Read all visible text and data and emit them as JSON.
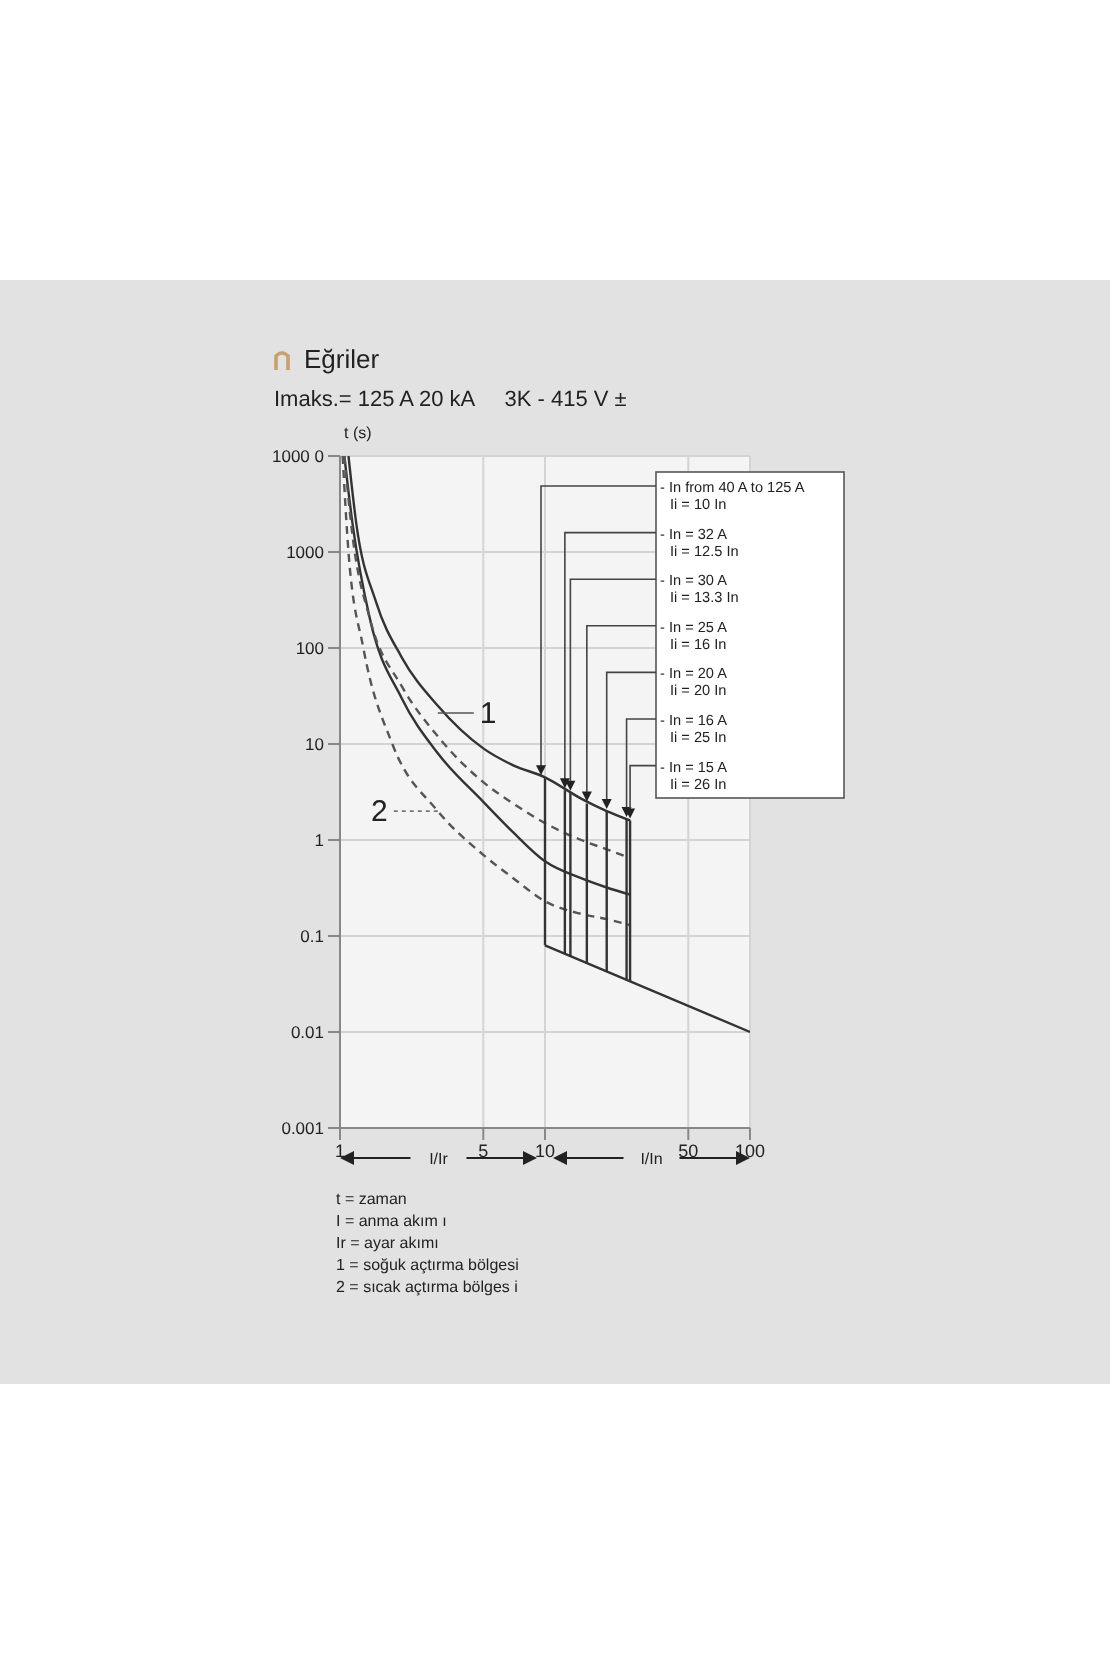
{
  "chart_data": {
    "type": "line",
    "title": "Eğriler",
    "subtitle": "Imaks.= 125 A 20 kA     3K - 415 V ±",
    "xlabel": "I/Ir",
    "ylabel": "t (s)",
    "log": "xy",
    "xlim": [
      1,
      100
    ],
    "ylim": [
      0.001,
      10000
    ],
    "xticks": [
      1,
      5,
      10,
      50,
      100
    ],
    "yticks": [
      0.001,
      0.01,
      0.1,
      1,
      10,
      100,
      1000,
      {
        "value": 10000,
        "label": "1000 0"
      }
    ],
    "grid": true,
    "series": [
      {
        "color": "#333333",
        "line_style": "solid",
        "x": [
          1.1,
          1.2,
          1.5,
          2,
          3,
          5,
          7,
          10,
          15,
          20,
          26
        ],
        "values": [
          10000,
          2000,
          300,
          80,
          25,
          9,
          6,
          4.5,
          2.7,
          2,
          1.6
        ]
      },
      {
        "color": "#333333",
        "line_style": "solid",
        "x": [
          1.05,
          1.15,
          1.4,
          2,
          3,
          5,
          7,
          10,
          15,
          20,
          26
        ],
        "values": [
          10000,
          2000,
          200,
          30,
          8,
          2.5,
          1.2,
          0.6,
          0.4,
          0.32,
          0.27
        ]
      },
      {
        "color": "#555555",
        "line_style": "dashed",
        "x": [
          1.05,
          1.15,
          1.4,
          2,
          3,
          5,
          7,
          10,
          15,
          20,
          26
        ],
        "values": [
          10000,
          1500,
          200,
          40,
          12,
          4,
          2.4,
          1.5,
          1,
          0.8,
          0.65
        ]
      },
      {
        "color": "#555555",
        "line_style": "dashed",
        "x": [
          1.03,
          1.1,
          1.3,
          1.8,
          3,
          5,
          7,
          10,
          15,
          20,
          26
        ],
        "values": [
          10000,
          1000,
          100,
          10,
          2,
          0.7,
          0.4,
          0.23,
          0.17,
          0.15,
          0.13
        ]
      },
      {
        "color": "#333333",
        "line_style": "solid",
        "x": [
          10,
          100
        ],
        "values": [
          0.08,
          0.01
        ]
      },
      {
        "color": "#333333",
        "line_style": "solid",
        "x": [
          10,
          10
        ],
        "values": [
          4.5,
          0.08
        ]
      },
      {
        "color": "#333333",
        "line_style": "solid",
        "x": [
          12.5,
          12.5
        ],
        "values": [
          3.3,
          0.066
        ]
      },
      {
        "color": "#333333",
        "line_style": "solid",
        "x": [
          13.3,
          13.3
        ],
        "values": [
          3.1,
          0.062
        ]
      },
      {
        "color": "#333333",
        "line_style": "solid",
        "x": [
          16,
          16
        ],
        "values": [
          2.4,
          0.052
        ]
      },
      {
        "color": "#333333",
        "line_style": "solid",
        "x": [
          20,
          20
        ],
        "values": [
          2,
          0.043
        ]
      },
      {
        "color": "#333333",
        "line_style": "solid",
        "x": [
          25,
          25
        ],
        "values": [
          1.65,
          0.035
        ]
      },
      {
        "color": "#333333",
        "line_style": "solid",
        "x": [
          26,
          26
        ],
        "values": [
          1.6,
          0.034
        ]
      }
    ],
    "annotations": [
      {
        "text": "- In from 40 A to 125 A\nIi = 10 In",
        "x": 10,
        "y": 4.5
      },
      {
        "text": "- In = 32 A\nIi = 12.5 In",
        "x": 12.5,
        "y": 3.3
      },
      {
        "text": "- In = 30 A\nIi = 13.3 In",
        "x": 13.3,
        "y": 3.1
      },
      {
        "text": "- In = 25 A\nIi = 16 In",
        "x": 16,
        "y": 2.4
      },
      {
        "text": "- In = 20 A\nIi = 20 In",
        "x": 20,
        "y": 2
      },
      {
        "text": "- In = 16 A\nIi = 25 In",
        "x": 25,
        "y": 1.65
      },
      {
        "text": "- In = 15 A\nIi = 26 In",
        "x": 26,
        "y": 1.6
      },
      {
        "text": "1",
        "x": 3,
        "y": 21
      },
      {
        "text": "2",
        "x": 3,
        "y": 2
      },
      "I/In",
      "t = zaman",
      "I = anma akım ı",
      "Ir = ayar akımı",
      "1 = soğuk açtırma bölgesi",
      "2 = sıcak açtırma bölges i"
    ]
  }
}
